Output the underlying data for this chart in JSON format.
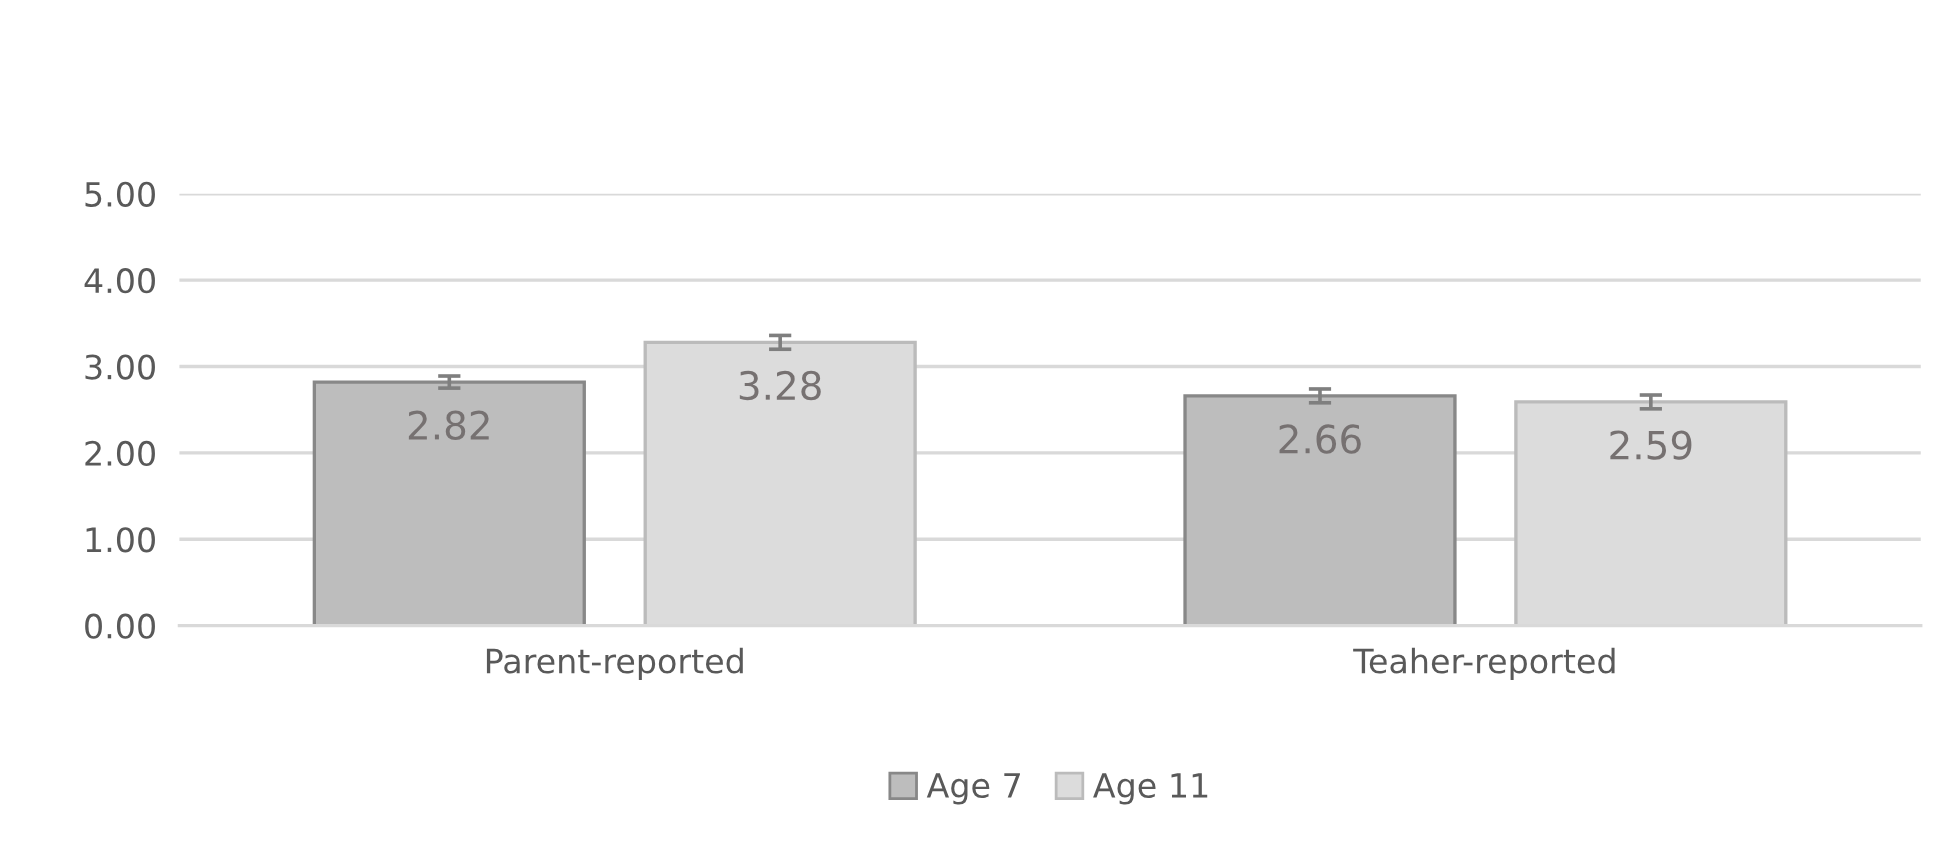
{
  "chart_data": {
    "type": "bar",
    "categories": [
      "Parent-reported",
      "Teaher-reported"
    ],
    "series": [
      {
        "name": "Age 7",
        "color": "#bdbdbd",
        "values": [
          2.82,
          2.66
        ],
        "errors": [
          0.07,
          0.08
        ]
      },
      {
        "name": "Age 11",
        "color": "#dcdcdc",
        "values": [
          3.28,
          2.59
        ],
        "errors": [
          0.08,
          0.08
        ]
      }
    ],
    "ylim": [
      0,
      5
    ],
    "yticks": [
      {
        "value": 0,
        "label": "0.00"
      },
      {
        "value": 1,
        "label": "1.00"
      },
      {
        "value": 2,
        "label": "2.00"
      },
      {
        "value": 3,
        "label": "3.00"
      },
      {
        "value": 4,
        "label": "4.00"
      },
      {
        "value": 5,
        "label": "5.00"
      }
    ],
    "grid": "y",
    "legend": "bottom",
    "data_labels": true
  }
}
